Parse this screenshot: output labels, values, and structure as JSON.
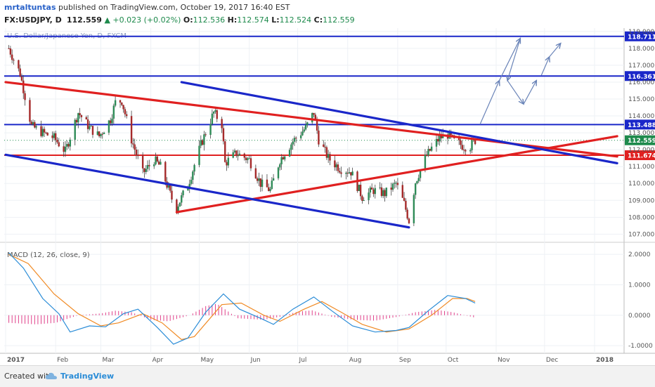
{
  "header": {
    "author": "mrtaltuntas",
    "published_text": " published on TradingView.com, October 19, 2017 16:40 EST",
    "symbol": "FX:USDJPY, D",
    "last": "112.559",
    "change": "+0.023 (+0.02%)",
    "o_label": "O:",
    "o_val": "112.536",
    "h_label": "H:",
    "h_val": "112.574",
    "l_label": "L:",
    "l_val": "112.524",
    "c_label": "C:",
    "c_val": "112.559"
  },
  "footer": {
    "created_with": "Created with",
    "brand": "TradingView"
  },
  "chart_data": {
    "type": "candlestick",
    "title": "U.S. Dollar/Japanese Yen, D, FXCM",
    "price_axis": {
      "ylim": [
        106.6,
        119.2
      ],
      "ticks": [
        "107.000",
        "108.000",
        "109.000",
        "110.000",
        "111.000",
        "112.000",
        "113.000",
        "114.000",
        "115.000",
        "116.000",
        "117.000",
        "118.000",
        "119.000"
      ]
    },
    "time_axis": {
      "labels": [
        "2017",
        "Feb",
        "Mar",
        "Apr",
        "May",
        "Jun",
        "Jul",
        "Aug",
        "Sep",
        "Oct",
        "Nov",
        "Dec",
        "2018"
      ],
      "dates": [
        "2017-01-01",
        "2017-02-01",
        "2017-03-01",
        "2017-04-01",
        "2017-05-01",
        "2017-06-01",
        "2017-07-01",
        "2017-08-01",
        "2017-09-01",
        "2017-10-01",
        "2017-11-01",
        "2017-12-01",
        "2018-01-01"
      ]
    },
    "price_path": [
      [
        "2017-01-03",
        118.0
      ],
      [
        "2017-01-10",
        116.5
      ],
      [
        "2017-01-17",
        113.4
      ],
      [
        "2017-01-24",
        113.0
      ],
      [
        "2017-01-31",
        112.7
      ],
      [
        "2017-02-07",
        111.9
      ],
      [
        "2017-02-15",
        114.2
      ],
      [
        "2017-02-22",
        113.3
      ],
      [
        "2017-02-28",
        112.8
      ],
      [
        "2017-03-07",
        113.8
      ],
      [
        "2017-03-10",
        114.8
      ],
      [
        "2017-03-14",
        114.9
      ],
      [
        "2017-03-20",
        112.6
      ],
      [
        "2017-03-27",
        110.6
      ],
      [
        "2017-04-03",
        111.4
      ],
      [
        "2017-04-07",
        111.0
      ],
      [
        "2017-04-14",
        109.1
      ],
      [
        "2017-04-17",
        108.6
      ],
      [
        "2017-04-24",
        109.9
      ],
      [
        "2017-05-02",
        112.3
      ],
      [
        "2017-05-10",
        114.2
      ],
      [
        "2017-05-15",
        113.5
      ],
      [
        "2017-05-17",
        111.2
      ],
      [
        "2017-05-24",
        111.8
      ],
      [
        "2017-06-01",
        111.4
      ],
      [
        "2017-06-08",
        110.0
      ],
      [
        "2017-06-14",
        109.6
      ],
      [
        "2017-06-20",
        111.4
      ],
      [
        "2017-06-28",
        112.5
      ],
      [
        "2017-07-06",
        113.3
      ],
      [
        "2017-07-11",
        114.2
      ],
      [
        "2017-07-14",
        112.6
      ],
      [
        "2017-07-20",
        111.5
      ],
      [
        "2017-07-27",
        110.9
      ],
      [
        "2017-08-03",
        110.7
      ],
      [
        "2017-08-10",
        109.2
      ],
      [
        "2017-08-17",
        109.6
      ],
      [
        "2017-08-24",
        109.4
      ],
      [
        "2017-08-31",
        110.0
      ],
      [
        "2017-09-05",
        108.8
      ],
      [
        "2017-09-08",
        107.8
      ],
      [
        "2017-09-12",
        110.1
      ],
      [
        "2017-09-18",
        111.5
      ],
      [
        "2017-09-22",
        112.1
      ],
      [
        "2017-09-27",
        112.7
      ],
      [
        "2017-10-02",
        112.9
      ],
      [
        "2017-10-06",
        112.5
      ],
      [
        "2017-10-12",
        112.2
      ],
      [
        "2017-10-16",
        112.2
      ],
      [
        "2017-10-19",
        112.559
      ]
    ],
    "horizontal_levels": [
      {
        "value": 118.711,
        "label": "118.711",
        "color": "#1a27c9"
      },
      {
        "value": 116.361,
        "label": "116.361",
        "color": "#1a27c9"
      },
      {
        "value": 113.488,
        "label": "113.488",
        "color": "#1a27c9"
      },
      {
        "value": 111.674,
        "label": "111.674",
        "color": "#e02020"
      }
    ],
    "current_price": {
      "value": 112.559,
      "label": "112.559",
      "color": "#1e8a4c"
    },
    "trendlines": [
      {
        "name": "red-descending",
        "color": "#e02020",
        "points": [
          [
            "2017-01-01",
            116.0
          ],
          [
            "2018-01-15",
            111.6
          ]
        ]
      },
      {
        "name": "red-ascending",
        "color": "#e02020",
        "points": [
          [
            "2017-04-17",
            108.3
          ],
          [
            "2018-01-15",
            112.8
          ]
        ]
      },
      {
        "name": "blue-channel-upper",
        "color": "#1a27c9",
        "points": [
          [
            "2017-04-20",
            116.0
          ],
          [
            "2018-01-15",
            111.2
          ]
        ]
      },
      {
        "name": "blue-channel-lower",
        "color": "#1a27c9",
        "points": [
          [
            "2017-01-01",
            111.7
          ],
          [
            "2017-09-08",
            107.4
          ]
        ]
      }
    ],
    "projection_arrows": {
      "color": "#6a84b8",
      "points": [
        [
          "2017-10-22",
          113.5
        ],
        [
          "2017-11-03",
          116.1
        ],
        [
          "2017-11-16",
          118.6
        ],
        [
          "2017-11-08",
          116.1
        ],
        [
          "2017-11-18",
          114.7
        ],
        [
          "2017-11-26",
          116.1
        ],
        [
          "2017-11-29",
          116.4
        ],
        [
          "2017-12-04",
          117.5
        ],
        [
          "2017-12-11",
          118.3
        ]
      ]
    },
    "macd": {
      "title": "MACD (12, 26, close, 9)",
      "ylim": [
        -1.25,
        2.35
      ],
      "ticks": [
        "2.0000",
        "1.0000",
        "0.0000",
        "-1.0000"
      ],
      "macd_line": [
        [
          "2017-01-03",
          2.05
        ],
        [
          "2017-01-12",
          1.55
        ],
        [
          "2017-01-24",
          0.55
        ],
        [
          "2017-02-03",
          0.05
        ],
        [
          "2017-02-10",
          -0.55
        ],
        [
          "2017-02-22",
          -0.35
        ],
        [
          "2017-03-04",
          -0.38
        ],
        [
          "2017-03-15",
          0.05
        ],
        [
          "2017-03-24",
          0.2
        ],
        [
          "2017-04-05",
          -0.4
        ],
        [
          "2017-04-15",
          -0.95
        ],
        [
          "2017-04-24",
          -0.75
        ],
        [
          "2017-05-05",
          0.1
        ],
        [
          "2017-05-16",
          0.7
        ],
        [
          "2017-05-26",
          0.2
        ],
        [
          "2017-06-08",
          -0.1
        ],
        [
          "2017-06-16",
          -0.3
        ],
        [
          "2017-06-28",
          0.2
        ],
        [
          "2017-07-11",
          0.6
        ],
        [
          "2017-07-22",
          0.15
        ],
        [
          "2017-08-04",
          -0.35
        ],
        [
          "2017-08-18",
          -0.55
        ],
        [
          "2017-08-31",
          -0.5
        ],
        [
          "2017-09-08",
          -0.4
        ],
        [
          "2017-09-20",
          0.15
        ],
        [
          "2017-10-02",
          0.65
        ],
        [
          "2017-10-13",
          0.55
        ],
        [
          "2017-10-19",
          0.4
        ]
      ],
      "signal_line": [
        [
          "2017-01-03",
          2.0
        ],
        [
          "2017-01-15",
          1.7
        ],
        [
          "2017-01-31",
          0.7
        ],
        [
          "2017-02-15",
          0.05
        ],
        [
          "2017-03-01",
          -0.35
        ],
        [
          "2017-03-12",
          -0.25
        ],
        [
          "2017-03-27",
          0.05
        ],
        [
          "2017-04-08",
          -0.25
        ],
        [
          "2017-04-20",
          -0.8
        ],
        [
          "2017-04-28",
          -0.7
        ],
        [
          "2017-05-15",
          0.35
        ],
        [
          "2017-05-27",
          0.4
        ],
        [
          "2017-06-10",
          0.0
        ],
        [
          "2017-06-20",
          -0.2
        ],
        [
          "2017-07-05",
          0.2
        ],
        [
          "2017-07-16",
          0.45
        ],
        [
          "2017-07-28",
          0.1
        ],
        [
          "2017-08-10",
          -0.3
        ],
        [
          "2017-08-25",
          -0.55
        ],
        [
          "2017-09-08",
          -0.45
        ],
        [
          "2017-09-22",
          0.0
        ],
        [
          "2017-10-05",
          0.55
        ],
        [
          "2017-10-14",
          0.55
        ],
        [
          "2017-10-19",
          0.45
        ]
      ],
      "histogram": [
        [
          "2017-01-03",
          -0.25
        ],
        [
          "2017-01-20",
          -0.3
        ],
        [
          "2017-02-01",
          -0.25
        ],
        [
          "2017-02-15",
          0.0
        ],
        [
          "2017-03-01",
          0.06
        ],
        [
          "2017-03-10",
          0.15
        ],
        [
          "2017-03-20",
          0.1
        ],
        [
          "2017-04-01",
          -0.15
        ],
        [
          "2017-04-12",
          -0.2
        ],
        [
          "2017-04-25",
          0.0
        ],
        [
          "2017-05-05",
          0.3
        ],
        [
          "2017-05-12",
          0.38
        ],
        [
          "2017-05-25",
          -0.1
        ],
        [
          "2017-06-10",
          -0.15
        ],
        [
          "2017-06-20",
          -0.05
        ],
        [
          "2017-07-01",
          0.12
        ],
        [
          "2017-07-10",
          0.16
        ],
        [
          "2017-07-22",
          -0.05
        ],
        [
          "2017-08-05",
          -0.15
        ],
        [
          "2017-08-18",
          -0.18
        ],
        [
          "2017-09-01",
          -0.05
        ],
        [
          "2017-09-12",
          0.1
        ],
        [
          "2017-09-25",
          0.18
        ],
        [
          "2017-10-05",
          0.1
        ],
        [
          "2017-10-19",
          -0.08
        ]
      ],
      "colors": {
        "macd": "#2a8cd7",
        "signal": "#f08a24",
        "histogram": "#e0408a"
      }
    }
  }
}
